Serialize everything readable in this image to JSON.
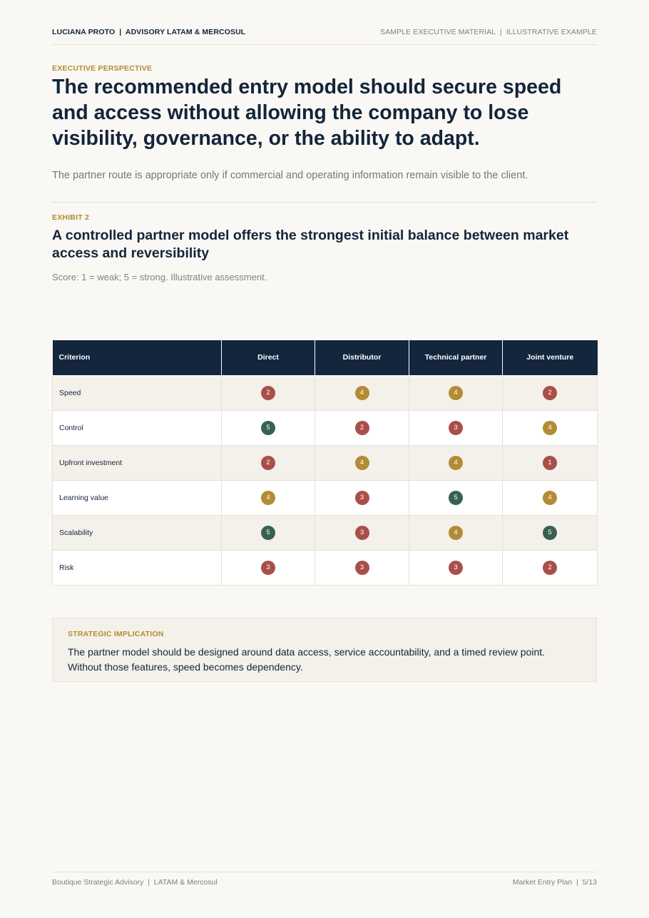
{
  "header": {
    "brand": "LUCIANA PROTO  |  ADVISORY LATAM & MERCOSUL",
    "doc_tag": "SAMPLE EXECUTIVE MATERIAL  |  ILLUSTRATIVE EXAMPLE"
  },
  "perspective": {
    "eyebrow": "EXECUTIVE PERSPECTIVE",
    "headline": "The recommended entry model should secure speed and access without allowing the company to lose visibility, governance, or the ability to adapt.",
    "subline": "The partner route is appropriate only if commercial and operating information remain visible to the client."
  },
  "exhibit": {
    "eyebrow": "EXHIBIT 2",
    "title": "A controlled partner model offers the strongest initial balance between market access and reversibility",
    "note": "Score: 1 = weak; 5 = strong. Illustrative assessment."
  },
  "table": {
    "columns": [
      "Criterion",
      "Direct",
      "Distributor",
      "Technical partner",
      "Joint venture"
    ],
    "rows": [
      {
        "criterion": "Speed",
        "scores": [
          2,
          4,
          4,
          2
        ]
      },
      {
        "criterion": "Control",
        "scores": [
          5,
          2,
          3,
          4
        ]
      },
      {
        "criterion": "Upfront investment",
        "scores": [
          2,
          4,
          4,
          1
        ]
      },
      {
        "criterion": "Learning value",
        "scores": [
          4,
          3,
          5,
          4
        ]
      },
      {
        "criterion": "Scalability",
        "scores": [
          5,
          3,
          4,
          5
        ]
      },
      {
        "criterion": "Risk",
        "scores": [
          3,
          3,
          3,
          2
        ]
      }
    ],
    "score_colors": {
      "low": "#a94f4a",
      "mid": "#b48b35",
      "high": "#386150"
    }
  },
  "implication": {
    "eyebrow": "STRATEGIC IMPLICATION",
    "text": "The partner model should be designed around data access, service accountability, and a timed review point. Without those features, speed becomes dependency."
  },
  "footer": {
    "left": "Boutique Strategic Advisory  |  LATAM & Mercosul",
    "right": "Market Entry Plan  |  5/13"
  }
}
